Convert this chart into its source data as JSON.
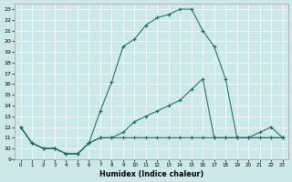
{
  "xlabel": "Humidex (Indice chaleur)",
  "bg_color": "#cce8e8",
  "line_color": "#1a6b6b",
  "xlim": [
    -0.5,
    23.5
  ],
  "ylim": [
    9,
    23.5
  ],
  "xticks": [
    0,
    1,
    2,
    3,
    4,
    5,
    6,
    7,
    8,
    9,
    10,
    11,
    12,
    13,
    14,
    15,
    16,
    17,
    18,
    19,
    20,
    21,
    22,
    23
  ],
  "yticks": [
    9,
    10,
    11,
    12,
    13,
    14,
    15,
    16,
    17,
    18,
    19,
    20,
    21,
    22,
    23
  ],
  "curve1_x": [
    0,
    1,
    2,
    3,
    4,
    5,
    6,
    7,
    8,
    9,
    10,
    11,
    12,
    13,
    14,
    15,
    16,
    17,
    18,
    19,
    20,
    21,
    22,
    23
  ],
  "curve1_y": [
    12,
    10.5,
    10,
    10,
    9.5,
    9.5,
    10.5,
    13.5,
    16.2,
    19.5,
    20.2,
    21.5,
    22.2,
    22.5,
    23,
    23,
    21,
    19.5,
    16.5,
    11,
    11,
    11.5,
    12,
    11
  ],
  "curve2_x": [
    0,
    1,
    2,
    3,
    4,
    5,
    6,
    7,
    8,
    9,
    10,
    11,
    12,
    13,
    14,
    15,
    16,
    17,
    18,
    19,
    20,
    21,
    22,
    23
  ],
  "curve2_y": [
    12,
    10.5,
    10,
    10,
    9.5,
    9.5,
    10.5,
    11,
    11,
    11.5,
    12.5,
    13,
    13.5,
    14,
    14.5,
    15.5,
    16.5,
    11,
    11,
    11,
    11,
    11,
    11,
    11
  ],
  "curve3_x": [
    0,
    1,
    2,
    3,
    4,
    5,
    6,
    7,
    8,
    9,
    10,
    11,
    12,
    13,
    14,
    15,
    16,
    17,
    18,
    19,
    20,
    21,
    22,
    23
  ],
  "curve3_y": [
    12,
    10.5,
    10,
    10,
    9.5,
    9.5,
    10.5,
    11,
    11,
    11,
    11,
    11,
    11,
    11,
    11,
    11,
    11,
    11,
    11,
    11,
    11,
    11,
    11,
    11
  ]
}
